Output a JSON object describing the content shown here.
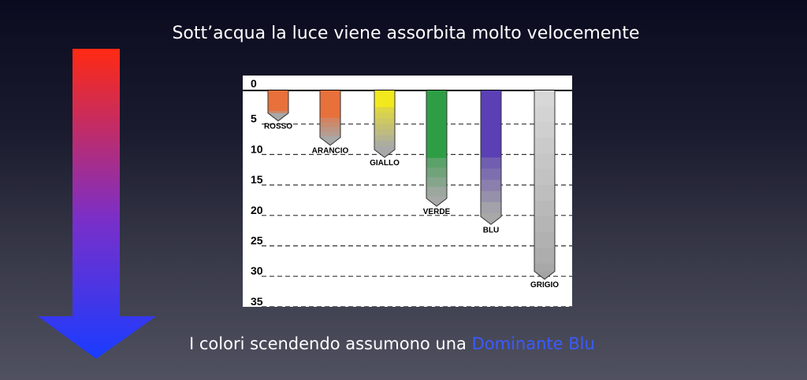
{
  "title": "Sott’acqua la luce viene assorbita molto velocemente",
  "caption": {
    "text": "I colori scendendo assumono una ",
    "highlight": "Dominante Blu",
    "highlight_color": "#3b5bff"
  },
  "arrow": {
    "color_top": "#ff2a12",
    "color_bottom": "#1a3cff"
  },
  "chart_data": {
    "type": "bar",
    "ylabel": "",
    "ylim": [
      0,
      35
    ],
    "depth_ticks": [
      0,
      5,
      10,
      15,
      20,
      25,
      30,
      35
    ],
    "columns": [
      {
        "label": "ROSSO",
        "max_depth": 5,
        "color_end": 3,
        "color": "#e8703a"
      },
      {
        "label": "ARANCIO",
        "max_depth": 9,
        "color_end": 4,
        "color": "#e8703a"
      },
      {
        "label": "GIALLO",
        "max_depth": 11,
        "color_end": 2.5,
        "color": "#f2e81e"
      },
      {
        "label": "VERDE",
        "max_depth": 19,
        "color_end": 10,
        "color": "#2e9e45"
      },
      {
        "label": "BLU",
        "max_depth": 22,
        "color_end": 10.5,
        "color": "#5a3fb5"
      },
      {
        "label": "GRIGIO",
        "max_depth": 31,
        "color_end": 0,
        "color": "#c8c8c8"
      }
    ]
  }
}
